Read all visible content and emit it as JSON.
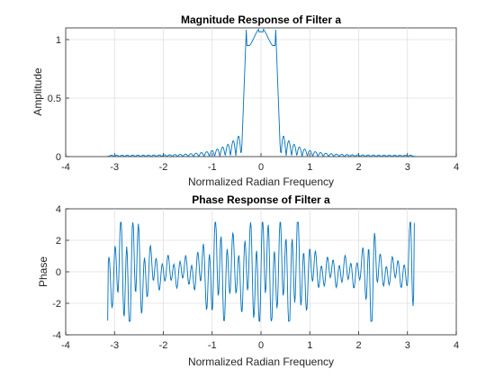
{
  "chart_data": [
    {
      "type": "line",
      "title": "Magnitude Response of Filter a",
      "xlabel": "Normalized Radian Frequency",
      "ylabel": "Amplitude",
      "xlim": [
        -4,
        4
      ],
      "ylim": [
        0,
        1.1
      ],
      "xticks": [
        "-4",
        "-3",
        "-2",
        "-1",
        "0",
        "1",
        "2",
        "3",
        "4"
      ],
      "yticks": [
        "0",
        "0.5",
        "1"
      ],
      "grid": true,
      "color": "#0072bd",
      "x_range": [
        -3.14,
        3.14
      ],
      "description_points": {
        "x": [
          -3.14,
          -1.0,
          -0.5,
          -0.35,
          -0.28,
          -0.15,
          0.0,
          0.15,
          0.28,
          0.35,
          0.5,
          1.0,
          3.14
        ],
        "y": [
          0.01,
          0.03,
          0.08,
          0.25,
          1.1,
          1.02,
          0.97,
          1.02,
          1.1,
          0.25,
          0.08,
          0.03,
          0.01
        ]
      }
    },
    {
      "type": "line",
      "title": "Phase Response of Filter a",
      "xlabel": "Normalized Radian Frequency",
      "ylabel": "Phase",
      "xlim": [
        -4,
        4
      ],
      "ylim": [
        -4,
        4
      ],
      "xticks": [
        "-4",
        "-3",
        "-2",
        "-1",
        "0",
        "1",
        "2",
        "3",
        "4"
      ],
      "yticks": [
        "-4",
        "-2",
        "0",
        "2",
        "4"
      ],
      "grid": true,
      "color": "#0072bd",
      "x_range": [
        -3.14,
        3.14
      ],
      "description_points": {
        "x": [
          -3.14,
          -2.8,
          -2.25,
          -1.0,
          -0.5,
          0.0,
          0.5,
          0.9,
          2.25,
          3.14
        ],
        "y": [
          -3.1,
          3.1,
          -3.1,
          -3.0,
          3.0,
          -3.0,
          2.8,
          3.0,
          3.0,
          3.1
        ]
      }
    }
  ]
}
